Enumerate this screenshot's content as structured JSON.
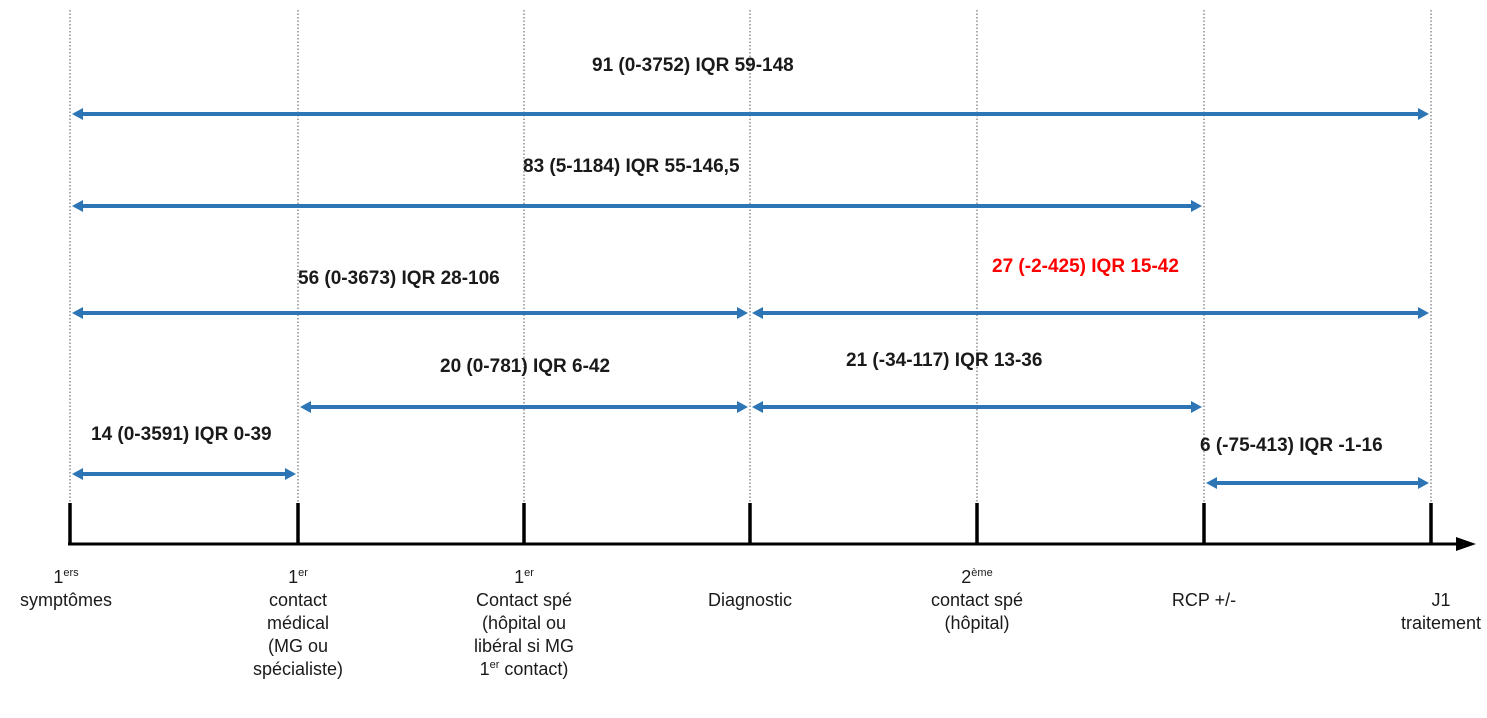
{
  "colors": {
    "arrow": "#2e75b6",
    "highlight": "#ff0000",
    "axis": "#000000"
  },
  "milestones": [
    {
      "id": "first-symptoms",
      "lines": [
        [
          "1",
          "ers"
        ],
        "symptômes"
      ]
    },
    {
      "id": "first-medical-contact",
      "lines": [
        [
          "1",
          "er"
        ],
        "contact",
        "médical",
        "(MG ou",
        "spécialiste)"
      ]
    },
    {
      "id": "first-specialist-contact",
      "lines": [
        [
          "1",
          "er"
        ],
        "Contact spé",
        "(hôpital ou",
        "libéral si MG",
        [
          "1",
          "er",
          " contact)"
        ]
      ]
    },
    {
      "id": "diagnostic",
      "lines": [
        "",
        "Diagnostic"
      ]
    },
    {
      "id": "second-specialist-contact",
      "lines": [
        [
          "2",
          "ème"
        ],
        "contact spé",
        "(hôpital)"
      ]
    },
    {
      "id": "rcp",
      "lines": [
        "RCP +/-"
      ]
    },
    {
      "id": "j1-treatment",
      "lines": [
        "J1",
        "traitement"
      ]
    }
  ],
  "intervals": [
    {
      "from": 0,
      "to": 6,
      "label": "91 (0-3752) IQR 59-148",
      "highlight": false
    },
    {
      "from": 0,
      "to": 5,
      "label": "83 (5-1184) IQR 55-146,5",
      "highlight": false
    },
    {
      "from": 0,
      "to": 3,
      "label": "56 (0-3673) IQR 28-106",
      "highlight": false
    },
    {
      "from": 3,
      "to": 6,
      "label": "27 (-2-425) IQR 15-42",
      "highlight": true
    },
    {
      "from": 1,
      "to": 3,
      "label": "20 (0-781) IQR 6-42",
      "highlight": false
    },
    {
      "from": 3,
      "to": 5,
      "label": "21 (-34-117) IQR 13-36",
      "highlight": false
    },
    {
      "from": 0,
      "to": 1,
      "label": "14 (0-3591) IQR 0-39",
      "highlight": false
    },
    {
      "from": 5,
      "to": 6,
      "label": "6 (-75-413) IQR -1-16",
      "highlight": false
    }
  ]
}
